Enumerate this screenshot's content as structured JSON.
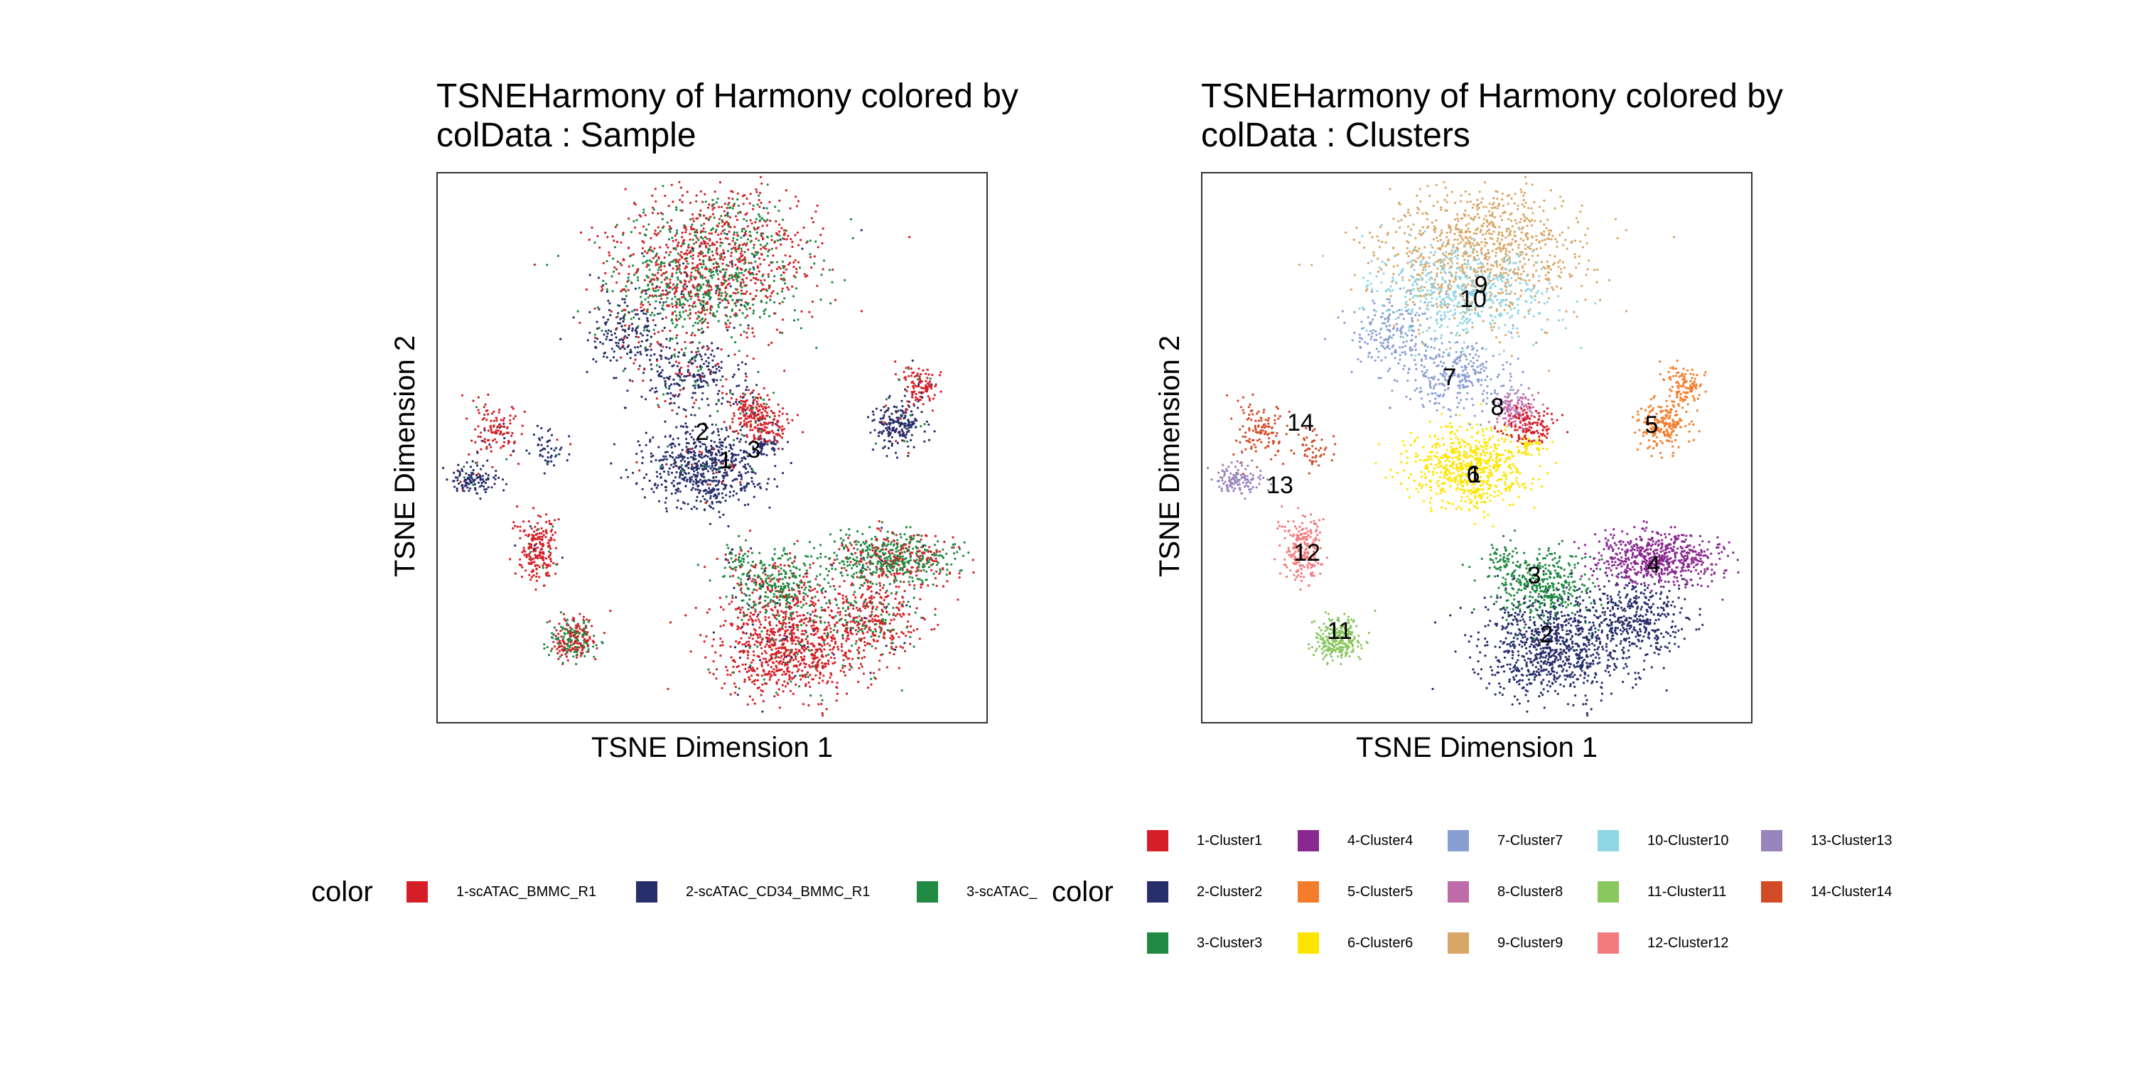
{
  "chart_data": [
    {
      "type": "scatter",
      "title": "TSNEHarmony of Harmony  colored by colData :  Sample",
      "title_line1": "TSNEHarmony of Harmony  colored by",
      "title_line2": "colData :  Sample",
      "xlabel": "TSNE Dimension 1",
      "ylabel": "TSNE Dimension 2",
      "grid": false,
      "legend_position": "bottom",
      "legend_title": "color",
      "cluster_labels": [
        "1",
        "2",
        "3"
      ],
      "legend": [
        {
          "label": "1-scATAC_BMMC_R1",
          "color": "#D51F26"
        },
        {
          "label": "2-scATAC_CD34_BMMC_R1",
          "color": "#272E6A"
        },
        {
          "label": "3-scATAC_",
          "color": "#208A42"
        }
      ]
    },
    {
      "type": "scatter",
      "title": "TSNEHarmony of Harmony  colored by colData :  Clusters",
      "title_line1": "TSNEHarmony of Harmony  colored by",
      "title_line2": "colData :  Clusters",
      "xlabel": "TSNE Dimension 1",
      "ylabel": "TSNE Dimension 2",
      "grid": false,
      "legend_position": "bottom",
      "legend_title": "color",
      "cluster_labels": [
        "1",
        "2",
        "3",
        "4",
        "5",
        "6",
        "7",
        "8",
        "9",
        "10",
        "11",
        "12",
        "13",
        "14"
      ],
      "legend": [
        {
          "label": "1-Cluster1",
          "color": "#D51F26"
        },
        {
          "label": "2-Cluster2",
          "color": "#272E6A"
        },
        {
          "label": "3-Cluster3",
          "color": "#208A42"
        },
        {
          "label": "4-Cluster4",
          "color": "#89288F"
        },
        {
          "label": "5-Cluster5",
          "color": "#F47D2B"
        },
        {
          "label": "6-Cluster6",
          "color": "#FEE500"
        },
        {
          "label": "7-Cluster7",
          "color": "#8A9FD1"
        },
        {
          "label": "8-Cluster8",
          "color": "#C06CAB"
        },
        {
          "label": "9-Cluster9",
          "color": "#D8A767"
        },
        {
          "label": "10-Cluster10",
          "color": "#90D5E4"
        },
        {
          "label": "11-Cluster11",
          "color": "#89C75F"
        },
        {
          "label": "12-Cluster12",
          "color": "#F37B7D"
        },
        {
          "label": "13-Cluster13",
          "color": "#9983BD"
        },
        {
          "label": "14-Cluster14",
          "color": "#D24B27"
        }
      ]
    }
  ]
}
